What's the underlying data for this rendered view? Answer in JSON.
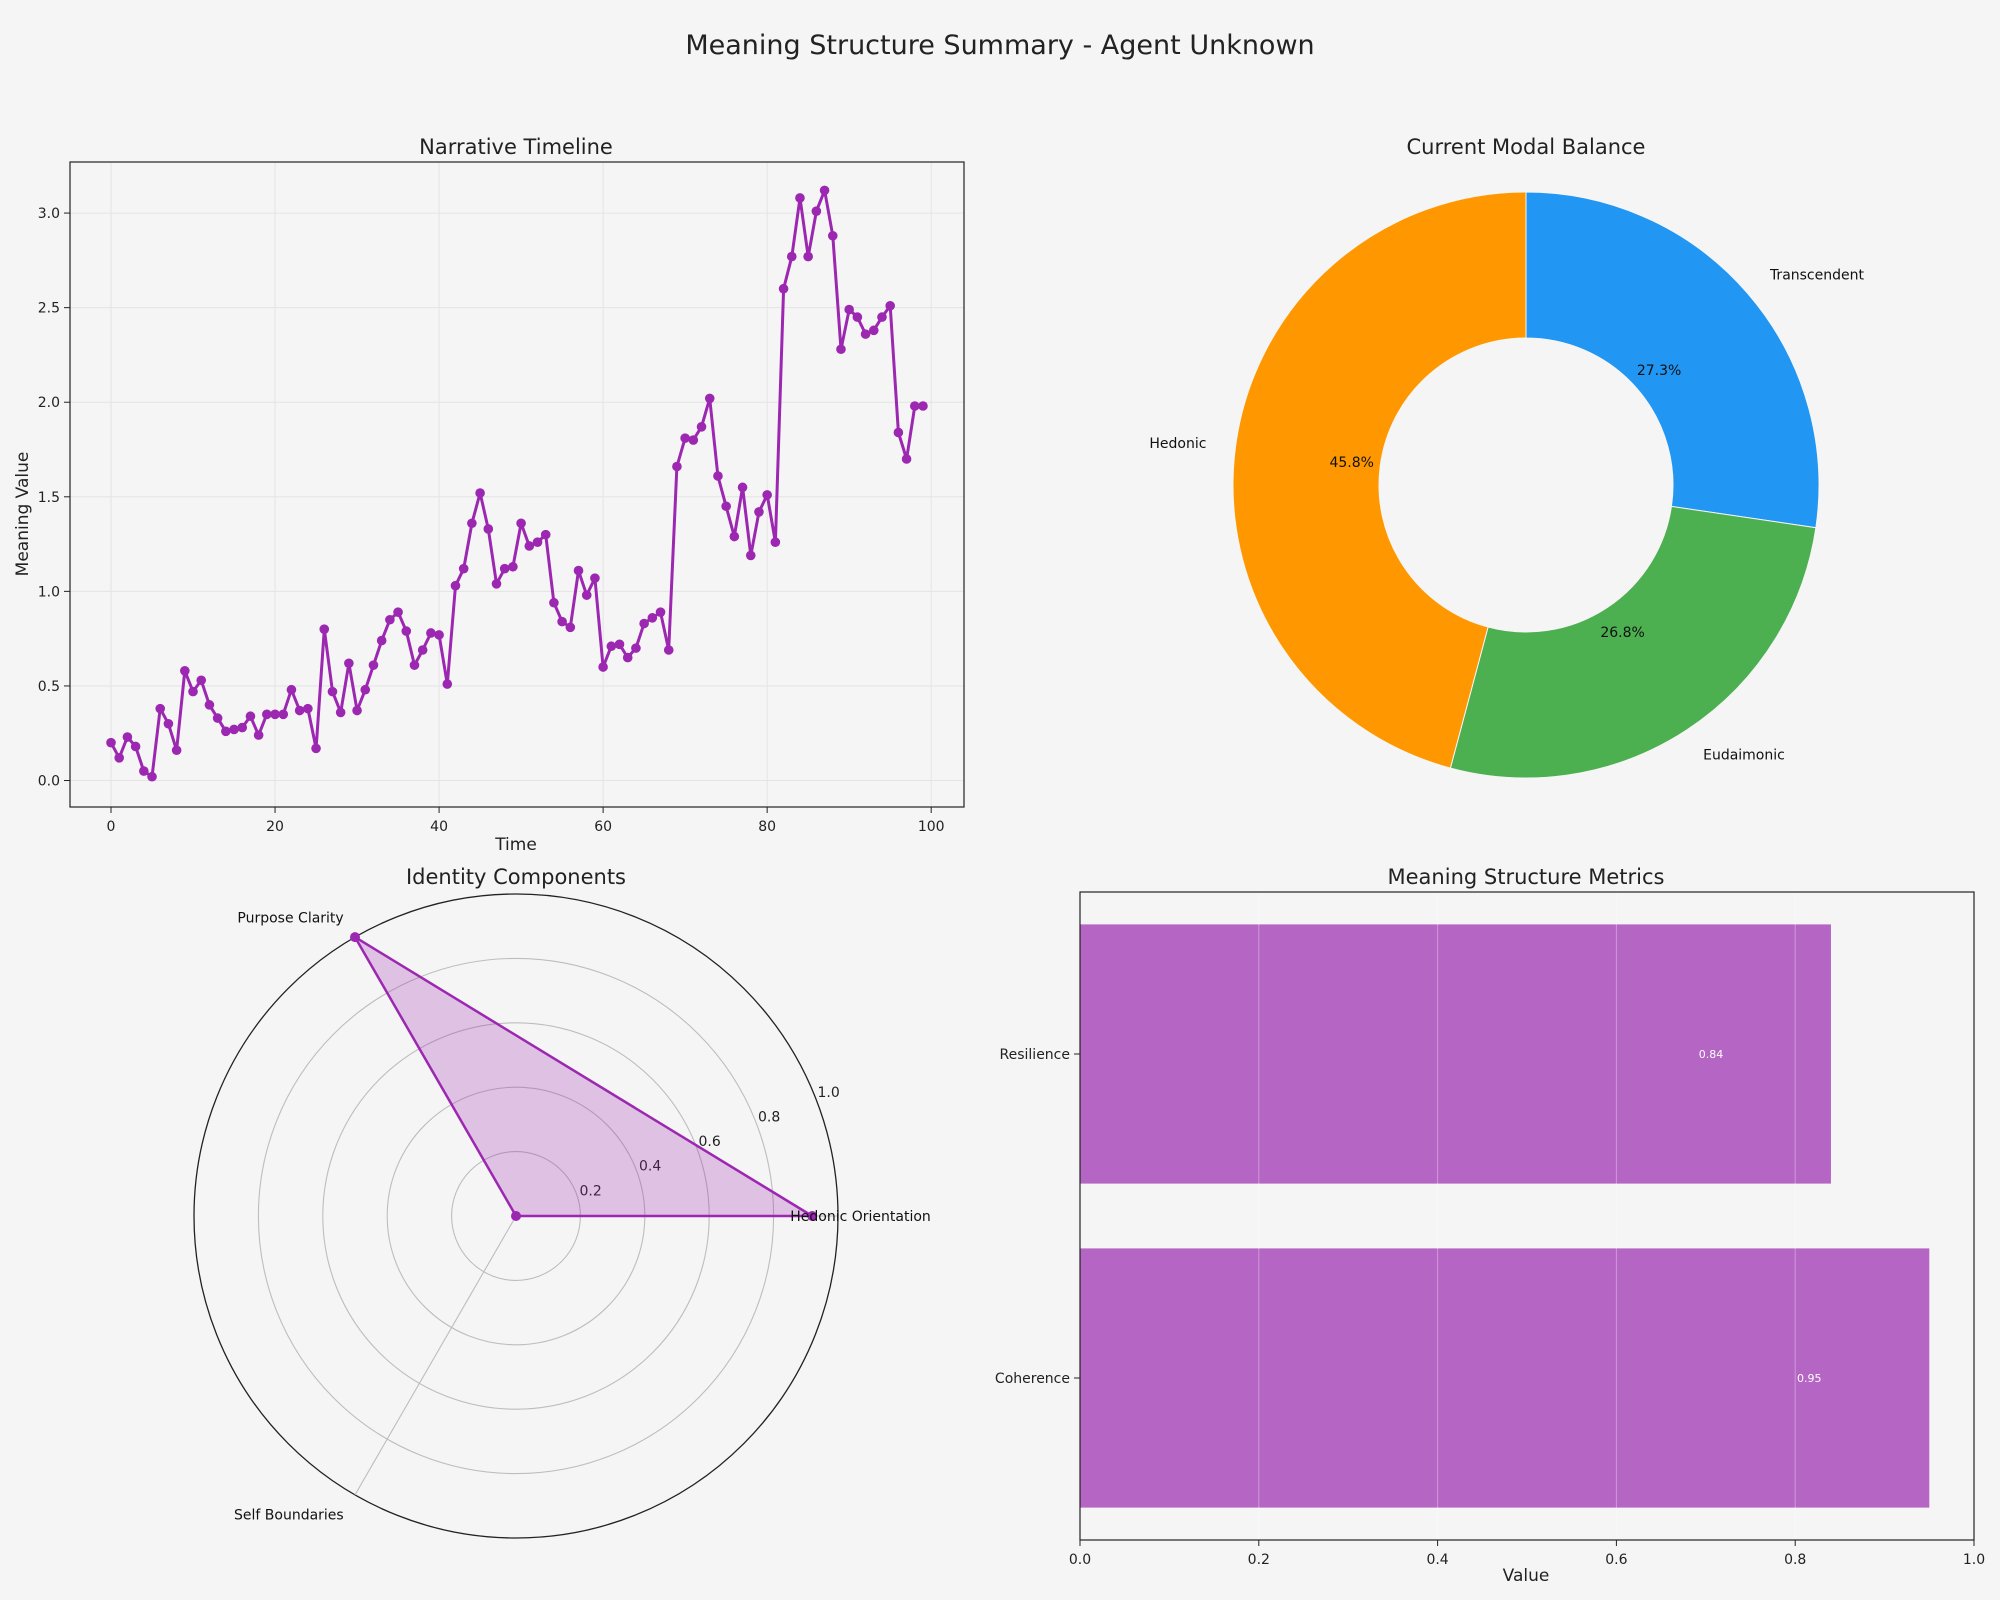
{
  "page": {
    "title": "Meaning Structure Summary - Agent Unknown"
  },
  "colors": {
    "background": "#f5f5f5",
    "line": "#9c27b0",
    "bar": "#b565c3",
    "hedonic": "#ff9800",
    "eudaimonic": "#4caf50",
    "transcendent": "#2196f3"
  },
  "chart_data": [
    {
      "type": "line",
      "title": "Narrative Timeline",
      "xlabel": "Time",
      "ylabel": "Meaning Value",
      "xlim": [
        -5,
        104
      ],
      "ylim": [
        -0.14,
        3.27
      ],
      "xticks": [
        "0",
        "20",
        "40",
        "60",
        "80",
        "100"
      ],
      "yticks": [
        "0.0",
        "0.5",
        "1.0",
        "1.5",
        "2.0",
        "2.5",
        "3.0"
      ],
      "grid": true,
      "markers": true,
      "x": [
        0,
        1,
        2,
        3,
        4,
        5,
        6,
        7,
        8,
        9,
        10,
        11,
        12,
        13,
        14,
        15,
        16,
        17,
        18,
        19,
        20,
        21,
        22,
        23,
        24,
        25,
        26,
        27,
        28,
        29,
        30,
        31,
        32,
        33,
        34,
        35,
        36,
        37,
        38,
        39,
        40,
        41,
        42,
        43,
        44,
        45,
        46,
        47,
        48,
        49,
        50,
        51,
        52,
        53,
        54,
        55,
        56,
        57,
        58,
        59,
        60,
        61,
        62,
        63,
        64,
        65,
        66,
        67,
        68,
        69,
        70,
        71,
        72,
        73,
        74,
        75,
        76,
        77,
        78,
        79,
        80,
        81,
        82,
        83,
        84,
        85,
        86,
        87,
        88,
        89,
        90,
        91,
        92,
        93,
        94,
        95,
        96,
        97,
        98,
        99
      ],
      "y": [
        0.2,
        0.12,
        0.23,
        0.18,
        0.05,
        0.02,
        0.38,
        0.3,
        0.16,
        0.58,
        0.47,
        0.53,
        0.4,
        0.33,
        0.26,
        0.27,
        0.28,
        0.34,
        0.24,
        0.35,
        0.35,
        0.35,
        0.48,
        0.37,
        0.38,
        0.17,
        0.8,
        0.47,
        0.36,
        0.62,
        0.37,
        0.48,
        0.61,
        0.74,
        0.85,
        0.89,
        0.79,
        0.61,
        0.69,
        0.78,
        0.77,
        0.51,
        1.03,
        1.12,
        1.36,
        1.52,
        1.33,
        1.04,
        1.12,
        1.13,
        1.36,
        1.24,
        1.26,
        1.3,
        0.94,
        0.84,
        0.81,
        1.11,
        0.98,
        1.07,
        0.6,
        0.71,
        0.72,
        0.65,
        0.7,
        0.83,
        0.86,
        0.89,
        0.69,
        1.66,
        1.81,
        1.8,
        1.87,
        2.02,
        1.61,
        1.45,
        1.29,
        1.55,
        1.19,
        1.42,
        1.51,
        1.26,
        2.6,
        2.77,
        3.08,
        2.77,
        3.01,
        3.12,
        2.88,
        2.28,
        2.49,
        2.45,
        2.36,
        2.38,
        2.45,
        2.51,
        1.84,
        1.7,
        1.98,
        1.98
      ]
    },
    {
      "type": "pie",
      "title": "Current Modal Balance",
      "donut": true,
      "labels": [
        "Transcendent",
        "Eudaimonic",
        "Hedonic"
      ],
      "values": [
        27.3,
        26.8,
        45.8
      ],
      "value_labels": [
        "27.3%",
        "26.8%",
        "45.8%"
      ],
      "colors": [
        "#2196f3",
        "#4caf50",
        "#ff9800"
      ],
      "start_angle_deg": 90,
      "direction": "clockwise"
    },
    {
      "type": "radar",
      "title": "Identity Components",
      "axes": [
        "Hedonic Orientation",
        "Purpose Clarity",
        "Self Boundaries"
      ],
      "values": [
        0.92,
        1.0,
        0.0
      ],
      "rlim": [
        0,
        1.0
      ],
      "rticks": [
        "0.2",
        "0.4",
        "0.6",
        "0.8",
        "1.0"
      ],
      "color": "#9c27b0"
    },
    {
      "type": "bar",
      "orientation": "horizontal",
      "title": "Meaning Structure Metrics",
      "xlabel": "Value",
      "categories": [
        "Resilience",
        "Coherence"
      ],
      "values": [
        0.84,
        0.95
      ],
      "value_labels": [
        "0.84",
        "0.95"
      ],
      "xlim": [
        0,
        1.0
      ],
      "xticks": [
        "0.0",
        "0.2",
        "0.4",
        "0.6",
        "0.8",
        "1.0"
      ],
      "grid": true,
      "color": "#b565c3"
    }
  ]
}
